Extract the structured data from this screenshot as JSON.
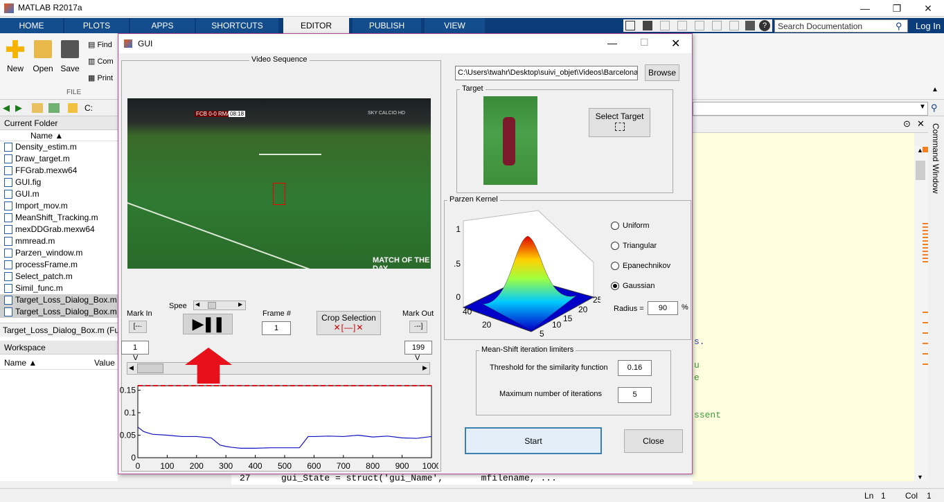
{
  "app": {
    "title": "MATLAB R2017a"
  },
  "ribbon_tabs": [
    "HOME",
    "PLOTS",
    "APPS",
    "SHORTCUTS",
    "EDITOR",
    "PUBLISH",
    "VIEW"
  ],
  "ribbon": {
    "new_label": "New",
    "open_label": "Open",
    "save_label": "Save",
    "find_label": "Find",
    "compare_label": "Com",
    "print_label": "Print",
    "file_section": "FILE"
  },
  "search": {
    "placeholder": "Search Documentation"
  },
  "login_label": "Log In",
  "address": {
    "path": "C:"
  },
  "current_folder": {
    "title": "Current Folder",
    "column_name": "Name ▲",
    "files": [
      "Density_estim.m",
      "Draw_target.m",
      "FFGrab.mexw64",
      "GUI.fig",
      "GUI.m",
      "Import_mov.m",
      "MeanShift_Tracking.m",
      "mexDDGrab.mexw64",
      "mmread.m",
      "Parzen_window.m",
      "processFrame.m",
      "Select_patch.m",
      "Simil_func.m",
      "Target_Loss_Dialog_Box.m",
      "Target_Loss_Dialog_Box.m"
    ],
    "details": "Target_Loss_Dialog_Box.m (Fu"
  },
  "workspace": {
    "title": "Workspace",
    "col_name": "Name ▲",
    "col_value": "Value"
  },
  "editor": {
    "line_number": "27",
    "line_code": "gui_State = struct('gui_Name',       mfilename, ...",
    "fragment_1": "s.",
    "fragment_2": "u",
    "fragment_3": "e",
    "fragment_4": "ssent"
  },
  "command_window_label": "Command Window",
  "status": {
    "ln_label": "Ln",
    "ln": "1",
    "col_label": "Col",
    "col": "1"
  },
  "gui": {
    "title": "GUI",
    "video_section": "Video Sequence",
    "video_overlay_score": "FCB 0-0 RMA",
    "video_overlay_time": "08:18",
    "video_overlay_channel": "SKY CALCIO HD",
    "video_overlay_logo": "MATCH OF THE DAY",
    "path_value": "C:\\Users\\twahr\\Desktop\\suivi_objet\\Videos\\Barcelona",
    "browse_label": "Browse",
    "target_section": "Target",
    "select_target_label": "Select Target",
    "parzen_section": "Parzen Kernel",
    "kernel_options": [
      "Uniform",
      "Triangular",
      "Epanechnikov",
      "Gaussian"
    ],
    "kernel_selected": "Gaussian",
    "radius_label": "Radius =",
    "radius_value": "90",
    "radius_unit": "%",
    "mark_in_label": "Mark In",
    "mark_in_value": "1",
    "speed_label": "Spee",
    "frame_label": "Frame #",
    "frame_value": "1",
    "crop_label": "Crop Selection",
    "mark_out_label": "Mark Out",
    "mark_out_value": "199",
    "slider_marker_v": "V",
    "meanshift_section": "Mean-Shift iteration limiters",
    "threshold_label": "Threshold for the similarity function",
    "threshold_value": "0.16",
    "maxiter_label": "Maximum number of iterations",
    "maxiter_value": "5",
    "start_label": "Start",
    "close_label": "Close"
  },
  "kernel_plot": {
    "z_ticks": [
      "1",
      ".5",
      "0"
    ],
    "y_ticks": [
      "40",
      "20"
    ],
    "x_ticks": [
      "5",
      "10",
      "15",
      "20",
      "25"
    ]
  },
  "chart_data": {
    "type": "line",
    "title": "",
    "xlabel": "",
    "ylabel": "",
    "xlim": [
      0,
      1000
    ],
    "ylim": [
      0,
      0.16
    ],
    "x_ticks": [
      0,
      100,
      200,
      300,
      400,
      500,
      600,
      700,
      800,
      900,
      1000
    ],
    "y_ticks": [
      0,
      0.05,
      0.1,
      0.15
    ],
    "threshold": 0.16,
    "threshold_color": "#e0101a",
    "series_color": "#1010c0",
    "x": [
      0,
      20,
      50,
      100,
      150,
      200,
      250,
      280,
      300,
      320,
      350,
      400,
      450,
      500,
      550,
      560,
      580,
      600,
      650,
      700,
      750,
      800,
      850,
      900,
      950,
      1000
    ],
    "y": [
      0.068,
      0.058,
      0.052,
      0.05,
      0.047,
      0.047,
      0.044,
      0.028,
      0.025,
      0.023,
      0.021,
      0.021,
      0.022,
      0.022,
      0.022,
      0.03,
      0.047,
      0.047,
      0.048,
      0.047,
      0.05,
      0.046,
      0.048,
      0.044,
      0.043,
      0.047
    ]
  },
  "colors": {
    "accent": "#0b3d7a",
    "guiborder": "#b44a9a",
    "arrow": "#e8101a",
    "editor_bg": "#ffffe0"
  }
}
